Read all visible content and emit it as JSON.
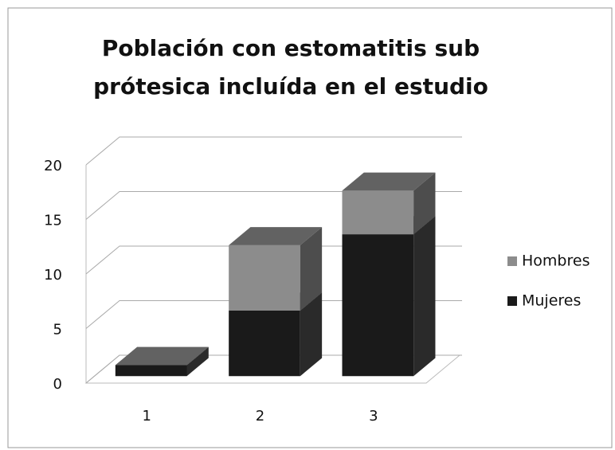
{
  "chart_data": {
    "type": "bar3d_stacked",
    "title": [
      "Población con estomatitis sub",
      "prótesica incluída en el estudio"
    ],
    "categories": [
      "1",
      "2",
      "3"
    ],
    "series": [
      {
        "name": "Mujeres",
        "color": "#1a1a1a",
        "values": [
          1,
          6,
          13
        ]
      },
      {
        "name": "Hombres",
        "color": "#8c8c8c",
        "values": [
          0,
          6,
          4
        ]
      }
    ],
    "ylim": [
      0,
      20
    ],
    "yticks": [
      0,
      5,
      10,
      15,
      20
    ],
    "grid": true,
    "legend": "right"
  }
}
